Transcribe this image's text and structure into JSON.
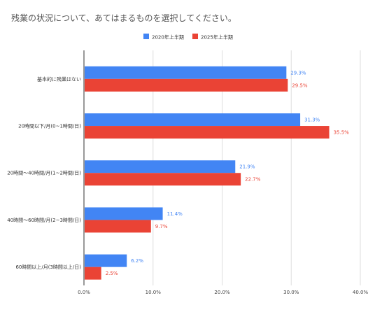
{
  "chart_data": {
    "type": "bar",
    "orientation": "horizontal",
    "title": "残業の状況について、あてはまるものを選択してください。",
    "categories": [
      "基本的に残業はない",
      "20時間以下/月(0~1時間/日)",
      "20時間～40時間/月(1~2時間/日)",
      "40時間～60時間/月(2~3時間/日)",
      "60時間以上/月(3時間以上/日)"
    ],
    "series": [
      {
        "name": "2020年上半期",
        "color": "#4285f4",
        "values": [
          29.3,
          31.3,
          21.9,
          11.4,
          6.2
        ],
        "labels": [
          "29.3%",
          "31.3%",
          "21.9%",
          "11.4%",
          "6.2%"
        ]
      },
      {
        "name": "2025年上半期",
        "color": "#ea4335",
        "values": [
          29.5,
          35.5,
          22.7,
          9.7,
          2.5
        ],
        "labels": [
          "29.5%",
          "35.5%",
          "22.7%",
          "9.7%",
          "2.5%"
        ]
      }
    ],
    "xlim": [
      0,
      40
    ],
    "xticks": [
      "0.0%",
      "10.0%",
      "20.0%",
      "30.0%",
      "40.0%"
    ],
    "grid": true,
    "legend": "top-center"
  }
}
